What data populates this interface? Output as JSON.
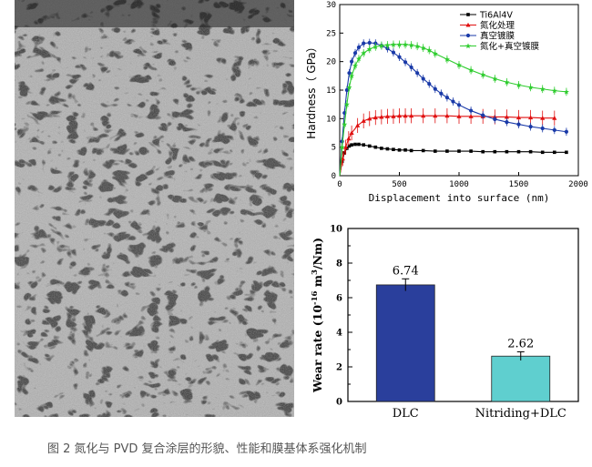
{
  "caption": "图 2 氮化与 PVD 复合涂层的形貌、性能和膜基体系强化机制",
  "sem_image": {
    "description_icon": "sem-micrograph"
  },
  "chart_data": [
    {
      "type": "line",
      "xlabel": "Displacement into surface (nm)",
      "ylabel": "Hardness（ GPa）",
      "xlim": [
        0,
        2000
      ],
      "ylim": [
        0,
        30
      ],
      "xticks": [
        0,
        500,
        1000,
        1500,
        2000
      ],
      "yticks": [
        0,
        5,
        10,
        15,
        20,
        25,
        30
      ],
      "legend_position": "top-right",
      "series": [
        {
          "name": "Ti6Al4V",
          "color": "#000000",
          "marker": "square",
          "x": [
            0,
            20,
            40,
            60,
            80,
            100,
            130,
            160,
            200,
            250,
            300,
            350,
            400,
            450,
            500,
            550,
            600,
            700,
            800,
            900,
            1000,
            1100,
            1200,
            1300,
            1400,
            1500,
            1600,
            1700,
            1800,
            1900
          ],
          "y": [
            0,
            2.5,
            4.0,
            4.8,
            5.2,
            5.4,
            5.5,
            5.5,
            5.4,
            5.2,
            5.0,
            4.8,
            4.7,
            4.6,
            4.5,
            4.5,
            4.4,
            4.4,
            4.3,
            4.3,
            4.3,
            4.3,
            4.2,
            4.2,
            4.2,
            4.2,
            4.2,
            4.1,
            4.1,
            4.1
          ]
        },
        {
          "name": "氮化处理",
          "color": "#e01010",
          "marker": "triangle",
          "x": [
            0,
            25,
            50,
            75,
            100,
            150,
            200,
            250,
            300,
            350,
            400,
            450,
            500,
            550,
            600,
            700,
            800,
            900,
            1000,
            1100,
            1200,
            1300,
            1400,
            1500,
            1600,
            1700,
            1800
          ],
          "y": [
            0,
            3.0,
            5.0,
            6.5,
            7.5,
            8.8,
            9.6,
            10.0,
            10.2,
            10.3,
            10.4,
            10.4,
            10.5,
            10.5,
            10.5,
            10.5,
            10.5,
            10.5,
            10.4,
            10.4,
            10.4,
            10.3,
            10.3,
            10.2,
            10.2,
            10.1,
            10.1
          ]
        },
        {
          "name": "真空镀膜",
          "color": "#1a3aa8",
          "marker": "circle",
          "x": [
            0,
            20,
            40,
            60,
            80,
            100,
            130,
            160,
            200,
            250,
            300,
            350,
            400,
            450,
            500,
            550,
            600,
            650,
            700,
            750,
            800,
            850,
            900,
            950,
            1000,
            1100,
            1200,
            1300,
            1400,
            1500,
            1600,
            1700,
            1800,
            1900
          ],
          "y": [
            0,
            6,
            11,
            15,
            18,
            20,
            21.5,
            22.5,
            23.2,
            23.3,
            23.2,
            22.8,
            22.3,
            21.6,
            20.8,
            19.9,
            19.0,
            18.0,
            17.0,
            16.1,
            15.2,
            14.4,
            13.7,
            13.0,
            12.4,
            11.4,
            10.6,
            9.9,
            9.4,
            9.0,
            8.6,
            8.3,
            8.0,
            7.7
          ]
        },
        {
          "name": "氮化+真空镀膜",
          "color": "#2ecc2e",
          "marker": "star",
          "x": [
            0,
            20,
            40,
            60,
            80,
            100,
            130,
            160,
            200,
            250,
            300,
            350,
            400,
            450,
            500,
            550,
            600,
            650,
            700,
            750,
            800,
            900,
            1000,
            1100,
            1200,
            1300,
            1400,
            1500,
            1600,
            1700,
            1800,
            1900
          ],
          "y": [
            0,
            5,
            9,
            12.5,
            15.5,
            17.5,
            19.3,
            20.5,
            21.5,
            22.2,
            22.6,
            22.8,
            22.9,
            23.0,
            23.0,
            23.0,
            22.9,
            22.7,
            22.4,
            22.0,
            21.4,
            20.4,
            19.4,
            18.5,
            17.7,
            17.0,
            16.4,
            15.9,
            15.5,
            15.2,
            14.9,
            14.7
          ]
        }
      ]
    },
    {
      "type": "bar",
      "ylabel_main": "Wear rate (10",
      "ylabel_exp1": "-16",
      "ylabel_mid": " m",
      "ylabel_exp2": "3",
      "ylabel_end": "/Nm)",
      "ylim": [
        0,
        10
      ],
      "yticks": [
        0,
        2,
        4,
        6,
        8,
        10
      ],
      "categories": [
        "DLC",
        "Nitriding+DLC"
      ],
      "values": [
        6.74,
        2.62
      ],
      "value_labels": [
        "6.74",
        "2.62"
      ],
      "errors": [
        0.35,
        0.25
      ],
      "colors": [
        "#2a3f9c",
        "#5fcfcf"
      ]
    }
  ]
}
